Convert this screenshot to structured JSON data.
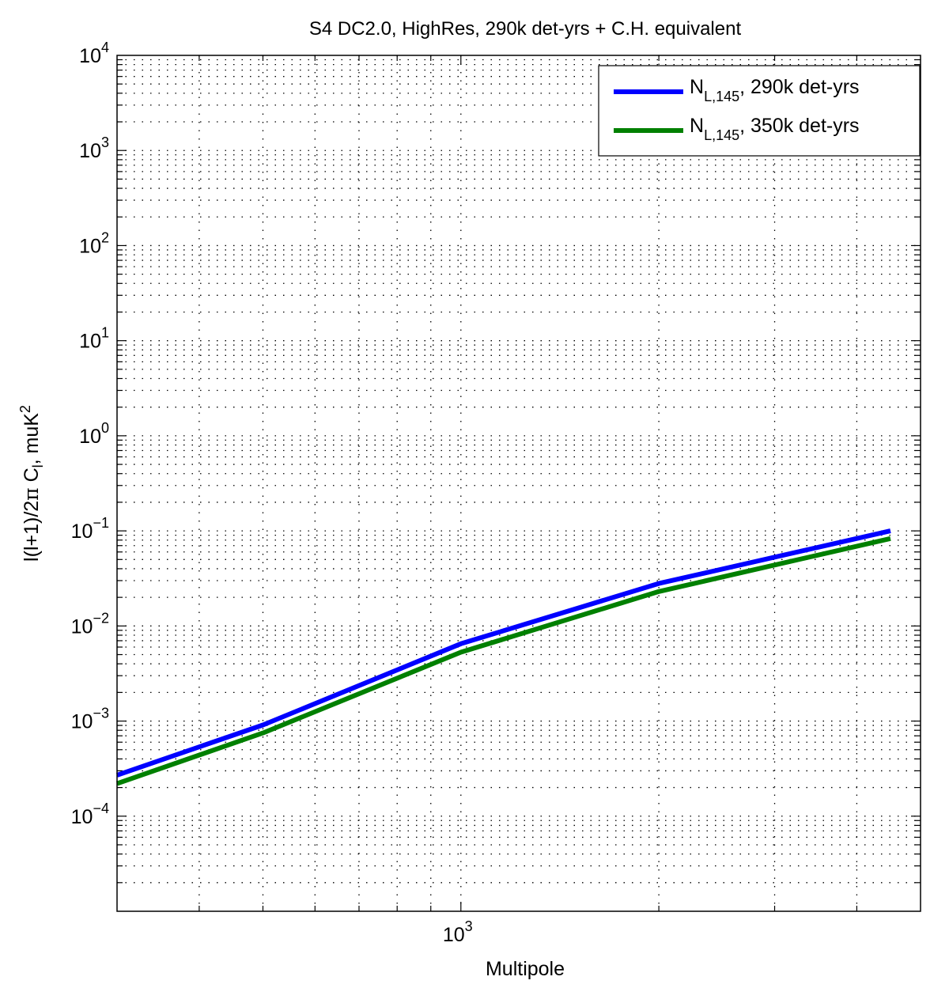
{
  "chart_data": {
    "type": "line",
    "title": "S4 DC2.0, HighRes, 290k det-yrs + C.H. equivalent",
    "xlabel": "Multipole",
    "ylabel": {
      "pre": "l(l+1)/2",
      "pi": "π",
      "mid": " C",
      "sub": "l",
      "post": ", muK",
      "sup": "2"
    },
    "xscale": "log",
    "yscale": "log",
    "xlim": [
      300,
      5000
    ],
    "ylim": [
      1e-05,
      10000
    ],
    "grid": true,
    "legend_position": "top-right",
    "x_ticks": [
      {
        "base": "10",
        "exp": "3",
        "value": 1000
      }
    ],
    "y_ticks": [
      {
        "base": "10",
        "exp": "−4",
        "value": 0.0001
      },
      {
        "base": "10",
        "exp": "−3",
        "value": 0.001
      },
      {
        "base": "10",
        "exp": "−2",
        "value": 0.01
      },
      {
        "base": "10",
        "exp": "−1",
        "value": 0.1
      },
      {
        "base": "10",
        "exp": "0",
        "value": 1
      },
      {
        "base": "10",
        "exp": "1",
        "value": 10
      },
      {
        "base": "10",
        "exp": "2",
        "value": 100
      },
      {
        "base": "10",
        "exp": "3",
        "value": 1000
      },
      {
        "base": "10",
        "exp": "4",
        "value": 10000
      }
    ],
    "series": [
      {
        "name": {
          "main": "N",
          "sub": "L,145",
          "rest": ", 290k det-yrs"
        },
        "color": "#0000ff",
        "x": [
          300,
          500,
          1000,
          2000,
          4500
        ],
        "y": [
          0.00027,
          0.00091,
          0.0065,
          0.028,
          0.1
        ]
      },
      {
        "name": {
          "main": "N",
          "sub": "L,145",
          "rest": ", 350k det-yrs"
        },
        "color": "#008000",
        "x": [
          300,
          500,
          1000,
          2000,
          4500
        ],
        "y": [
          0.00022,
          0.00075,
          0.0053,
          0.023,
          0.083
        ]
      }
    ]
  }
}
